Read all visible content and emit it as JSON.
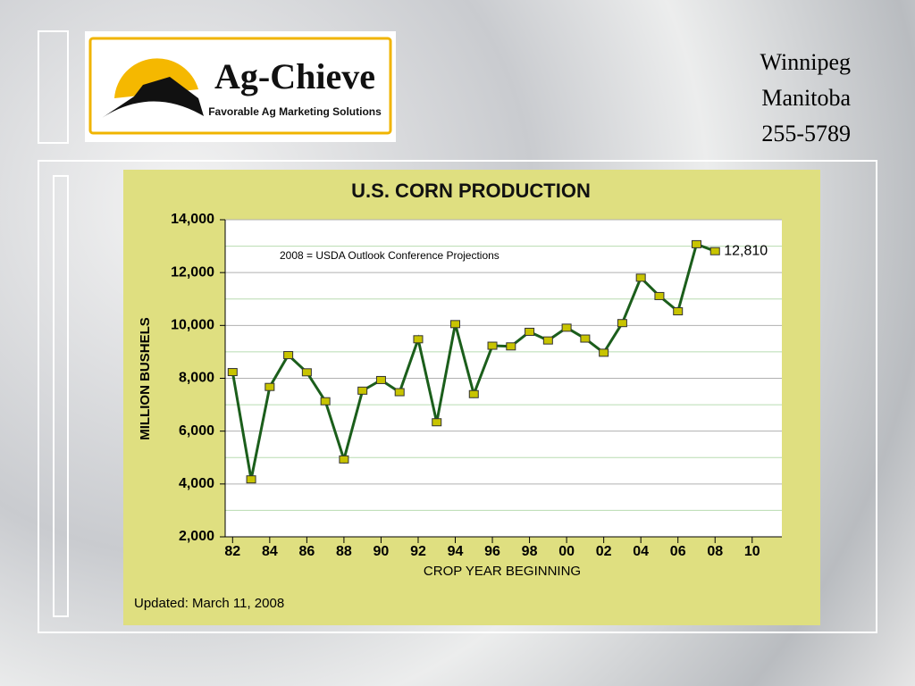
{
  "header": {
    "logo_title": "Ag-Chieve",
    "logo_subtitle": "Favorable Ag Marketing Solutions",
    "contact": [
      "Winnipeg",
      "Manitoba",
      "255-5789"
    ]
  },
  "chart_data": {
    "type": "line",
    "title": "U.S. CORN PRODUCTION",
    "x_label": "CROP YEAR BEGINNING",
    "y_label": "MILLION BUSHELS",
    "annotation": "2008 = USDA Outlook Conference Projections",
    "footnote": "Updated: March 11, 2008",
    "x": [
      1982,
      1983,
      1984,
      1985,
      1986,
      1987,
      1988,
      1989,
      1990,
      1991,
      1992,
      1993,
      1994,
      1995,
      1996,
      1997,
      1998,
      1999,
      2000,
      2001,
      2002,
      2003,
      2004,
      2005,
      2006,
      2007,
      2008
    ],
    "series": [
      {
        "name": "U.S. Corn Production",
        "color": "#1b5e1b",
        "marker_color": "#c8c400",
        "values": [
          8235,
          4174,
          7672,
          8877,
          8226,
          7131,
          4929,
          7532,
          7934,
          7475,
          9477,
          6336,
          10051,
          7400,
          9233,
          9207,
          9759,
          9431,
          9915,
          9503,
          8967,
          10089,
          11807,
          11112,
          10535,
          13074,
          12810
        ],
        "value_labels": [
          null,
          null,
          null,
          null,
          null,
          null,
          null,
          null,
          null,
          null,
          null,
          null,
          null,
          null,
          null,
          null,
          null,
          null,
          null,
          null,
          null,
          null,
          null,
          null,
          null,
          null,
          "12,810"
        ]
      }
    ],
    "xlim": [
      1981.6,
      2011.6
    ],
    "xticks": [
      {
        "value": 1982,
        "label": "82"
      },
      {
        "value": 1984,
        "label": "84"
      },
      {
        "value": 1986,
        "label": "86"
      },
      {
        "value": 1988,
        "label": "88"
      },
      {
        "value": 1990,
        "label": "90"
      },
      {
        "value": 1992,
        "label": "92"
      },
      {
        "value": 1994,
        "label": "94"
      },
      {
        "value": 1996,
        "label": "96"
      },
      {
        "value": 1998,
        "label": "98"
      },
      {
        "value": 2000,
        "label": "00"
      },
      {
        "value": 2002,
        "label": "02"
      },
      {
        "value": 2004,
        "label": "04"
      },
      {
        "value": 2006,
        "label": "06"
      },
      {
        "value": 2008,
        "label": "08"
      },
      {
        "value": 2010,
        "label": "10"
      }
    ],
    "ylim": [
      2000,
      14000
    ],
    "yticks": [
      {
        "value": 2000,
        "label": "2,000"
      },
      {
        "value": 4000,
        "label": "4,000"
      },
      {
        "value": 6000,
        "label": "6,000"
      },
      {
        "value": 8000,
        "label": "8,000"
      },
      {
        "value": 10000,
        "label": "10,000"
      },
      {
        "value": 12000,
        "label": "12,000"
      },
      {
        "value": 14000,
        "label": "14,000"
      }
    ],
    "yminor_ticks": [
      3000,
      5000,
      7000,
      9000,
      11000,
      13000
    ],
    "grid": true
  }
}
